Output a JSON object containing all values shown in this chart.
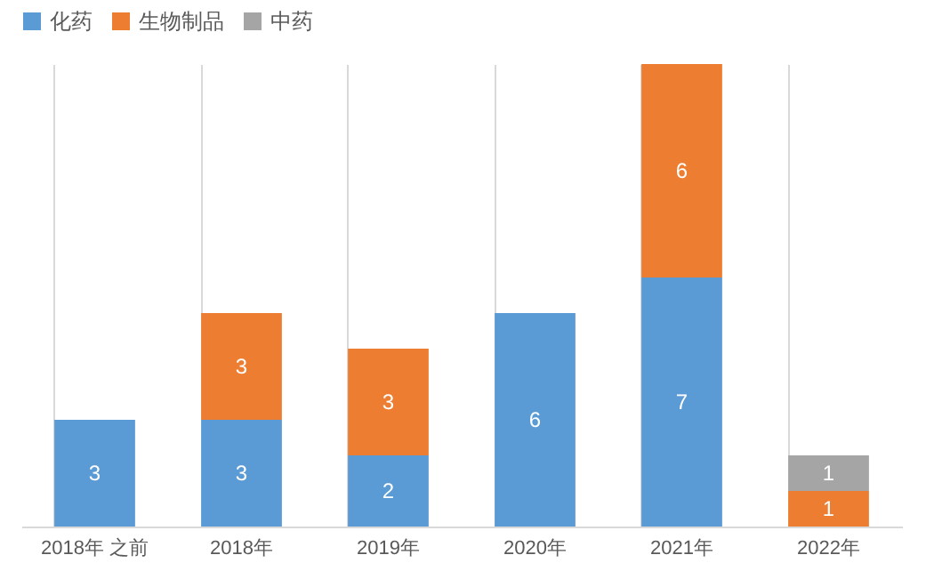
{
  "chart_data": {
    "type": "bar",
    "stacked": true,
    "data_labels": true,
    "grid": "x",
    "legend": "top",
    "categories": [
      "2018年 之前",
      "2018年",
      "2019年",
      "2020年",
      "2021年",
      "2022年"
    ],
    "series": [
      {
        "name": "化药",
        "color": "#5b9bd5",
        "values": [
          3,
          3,
          2,
          6,
          7,
          null
        ]
      },
      {
        "name": "生物制品",
        "color": "#ed7d31",
        "values": [
          null,
          3,
          3,
          null,
          6,
          1
        ]
      },
      {
        "name": "中药",
        "color": "#a5a5a5",
        "values": [
          null,
          null,
          null,
          null,
          null,
          1
        ]
      }
    ]
  }
}
